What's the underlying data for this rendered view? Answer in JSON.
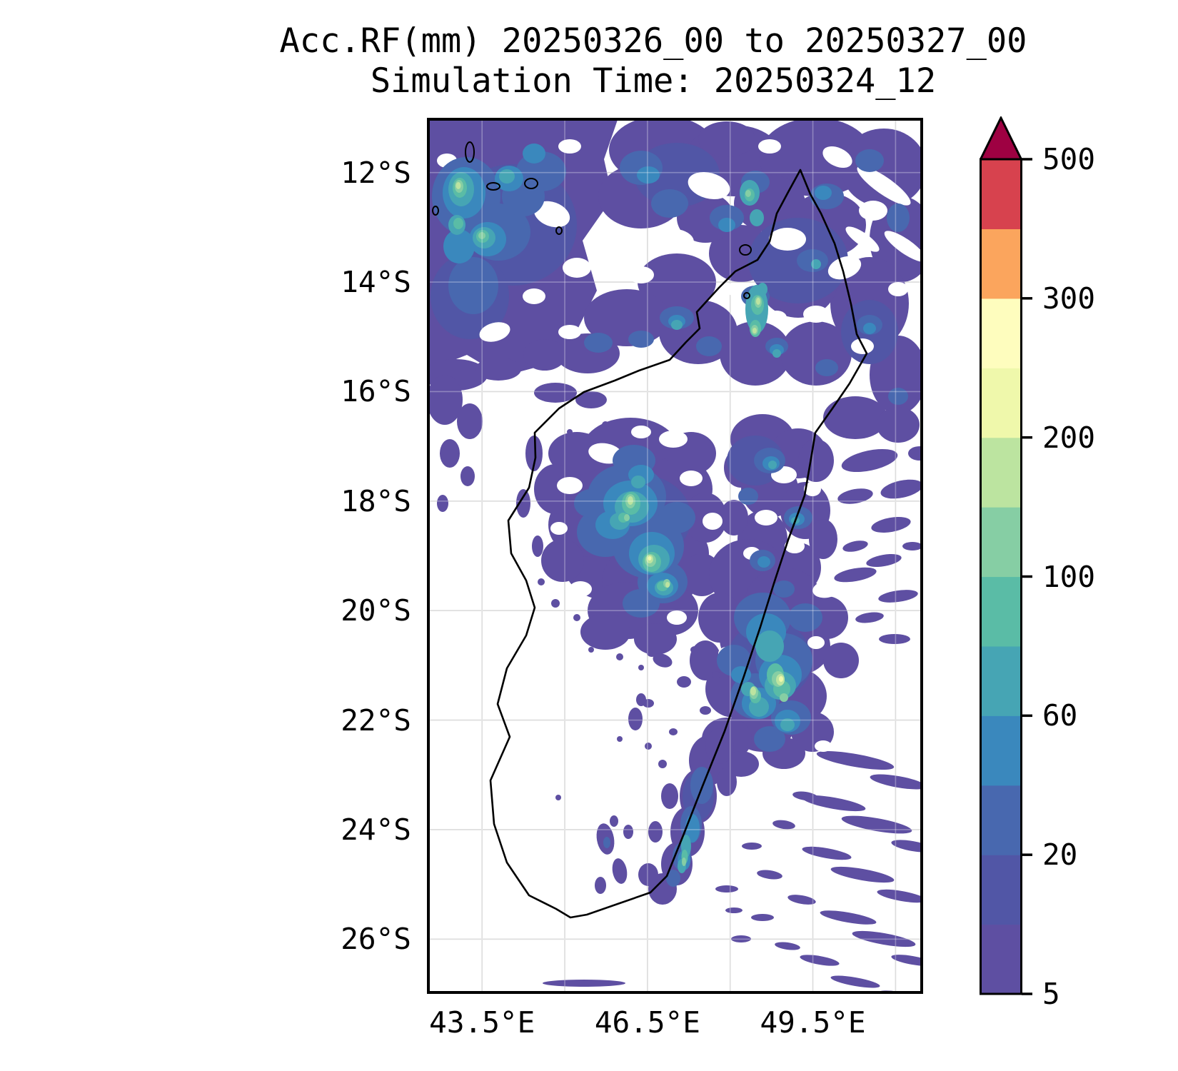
{
  "title": {
    "line1": "Acc.RF(mm) 20250326_00 to 20250327_00",
    "line2": "Simulation Time: 20250324_12"
  },
  "axes": {
    "lat": {
      "range_deg_south": [
        11,
        27
      ],
      "gridline_spacing_deg": 2,
      "ticks": [
        {
          "label": "12°S",
          "deg": 12
        },
        {
          "label": "14°S",
          "deg": 14
        },
        {
          "label": "16°S",
          "deg": 16
        },
        {
          "label": "18°S",
          "deg": 18
        },
        {
          "label": "20°S",
          "deg": 20
        },
        {
          "label": "22°S",
          "deg": 22
        },
        {
          "label": "24°S",
          "deg": 24
        },
        {
          "label": "26°S",
          "deg": 26
        }
      ]
    },
    "lon": {
      "range_deg_east": [
        42.5,
        51.5
      ],
      "gridline_spacing_deg": 1.5,
      "gridlines_deg": [
        43.5,
        45,
        46.5,
        48,
        49.5,
        51
      ],
      "ticks": [
        {
          "label": "43.5°E",
          "deg": 43.5
        },
        {
          "label": "46.5°E",
          "deg": 46.5
        },
        {
          "label": "49.5°E",
          "deg": 49.5
        }
      ]
    }
  },
  "colorbar": {
    "levels": [
      5,
      10,
      20,
      40,
      60,
      80,
      100,
      150,
      200,
      250,
      300,
      400,
      500
    ],
    "tick_values": [
      5,
      20,
      60,
      100,
      200,
      300,
      500
    ],
    "bin_colors": [
      "#5E4FA2",
      "#5156A6",
      "#4868AF",
      "#3A88BD",
      "#46A5B4",
      "#5ABCA6",
      "#86CEA4",
      "#BCE4A0",
      "#EFF8AB",
      "#FEFDBE",
      "#FBA55D",
      "#D7424E"
    ],
    "over_color": "#9E0142",
    "extend": "max"
  },
  "chart_data": {
    "type": "heatmap",
    "subtype": "filled-contour precipitation map",
    "title": "Acc.RF(mm) 20250326_00 to 20250327_00",
    "subtitle": "Simulation Time: 20250324_12",
    "variable": "24-hour accumulated rainfall (mm)",
    "region": "Madagascar and surrounding ocean (Mozambique Channel / SW Indian Ocean)",
    "lon_range_east": [
      42.5,
      51.5
    ],
    "lat_range_south": [
      11,
      27
    ],
    "x_tick_labels": [
      "43.5°E",
      "46.5°E",
      "49.5°E"
    ],
    "y_tick_labels": [
      "12°S",
      "14°S",
      "16°S",
      "18°S",
      "20°S",
      "22°S",
      "24°S",
      "26°S"
    ],
    "grid": true,
    "legend_position": "right-colorbar",
    "contour_levels_mm": [
      5,
      10,
      20,
      40,
      60,
      80,
      100,
      150,
      200,
      250,
      300,
      400,
      500
    ],
    "colormap": "Spectral reversed, discrete, extend max",
    "max_shown_value_mm": 250,
    "rain_features": [
      {
        "area": "Comoros / far northwest corner",
        "center": "43.0°E 12.5°S",
        "peak_mm": "150-250"
      },
      {
        "area": "Northern Madagascar band",
        "center": "46.5°E 14.5°S",
        "peak_mm": "100-200 near 48.5°E 14.5°S"
      },
      {
        "area": "Northeast coast and offshore",
        "center": "50.0°E 13.0°S",
        "peak_mm": "40-60"
      },
      {
        "area": "Central highlands blob",
        "center": "46.0°E 18.5°S",
        "peak_mm": "150-250 along 46.1°E 18.2°S to 46.4°E 19.5°S"
      },
      {
        "area": "East coast band",
        "center": "48.8°E 21.0°S",
        "peak_mm": "150-250 near 49.0°E 21.3°S"
      },
      {
        "area": "Southeast coast band",
        "center": "47.1°E 23.9°S",
        "peak_mm": "100-200 near 47.0°E 24.3°S"
      },
      {
        "area": "Southeast offshore streaks",
        "center": "49.5°E 24.5°S",
        "peak_mm": "5-20"
      },
      {
        "area": "Far-south thin bands",
        "center": "45.8°E 26.7°S",
        "peak_mm": "5-10"
      }
    ]
  }
}
